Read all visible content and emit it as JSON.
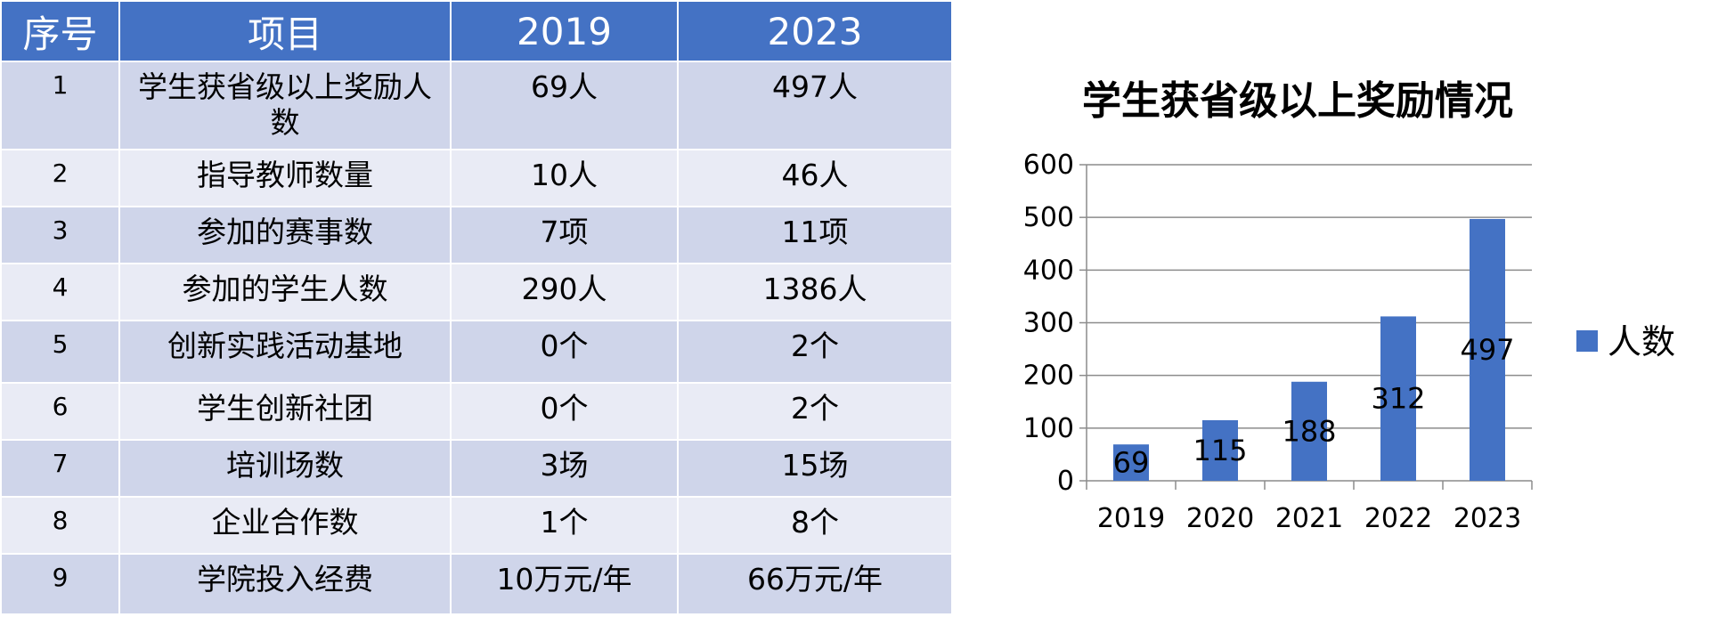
{
  "table": {
    "headers": [
      "序号",
      "项目",
      "2019",
      "2023"
    ],
    "rows": [
      {
        "no": "1",
        "item": "学生获省级以上奖励人数",
        "v2019": "69人",
        "v2023": "497人"
      },
      {
        "no": "2",
        "item": "指导教师数量",
        "v2019": "10人",
        "v2023": "46人"
      },
      {
        "no": "3",
        "item": "参加的赛事数",
        "v2019": "7项",
        "v2023": "11项"
      },
      {
        "no": "4",
        "item": "参加的学生人数",
        "v2019": "290人",
        "v2023": "1386人"
      },
      {
        "no": "5",
        "item": "创新实践活动基地",
        "v2019": "0个",
        "v2023": "2个"
      },
      {
        "no": "6",
        "item": "学生创新社团",
        "v2019": "0个",
        "v2023": "2个"
      },
      {
        "no": "7",
        "item": "培训场数",
        "v2019": "3场",
        "v2023": "15场"
      },
      {
        "no": "8",
        "item": "企业合作数",
        "v2019": "1个",
        "v2023": "8个"
      },
      {
        "no": "9",
        "item": "学院投入经费",
        "v2019": "10万元/年",
        "v2023": "66万元/年"
      }
    ]
  },
  "chart_data": {
    "type": "bar",
    "title": "学生获省级以上奖励情况",
    "categories": [
      "2019",
      "2020",
      "2021",
      "2022",
      "2023"
    ],
    "series": [
      {
        "name": "人数",
        "values": [
          69,
          115,
          188,
          312,
          497
        ],
        "color": "#4472c4"
      }
    ],
    "xlabel": "",
    "ylabel": "",
    "ylim": [
      0,
      600
    ],
    "yticks": [
      0,
      100,
      200,
      300,
      400,
      500,
      600
    ],
    "grid": true,
    "legend": "right"
  }
}
